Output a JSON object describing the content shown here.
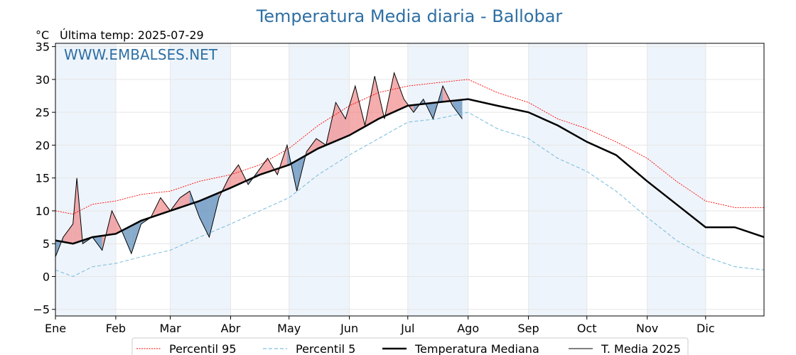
{
  "chart_data": {
    "type": "line",
    "title": "Temperatura Media diaria - Ballobar",
    "unit": "°C",
    "last_temp_label": "Última temp: 2025-07-29",
    "watermark": "WWW.EMBALSES.NET",
    "ylim": [
      -6,
      35.5
    ],
    "yticks": [
      -5,
      0,
      5,
      10,
      15,
      20,
      25,
      30,
      35
    ],
    "months": [
      "Ene",
      "Feb",
      "Mar",
      "Abr",
      "May",
      "Jun",
      "Jul",
      "Ago",
      "Sep",
      "Oct",
      "Nov",
      "Dic"
    ],
    "month_start_days": [
      1,
      32,
      60,
      91,
      121,
      152,
      182,
      213,
      244,
      274,
      305,
      335
    ],
    "days_in_year": 365,
    "grid": true,
    "legend_position": "bottom",
    "colors": {
      "p95": "#ff0000",
      "p5": "#7fbfdf",
      "median": "#000000",
      "current": "#000000",
      "above_fill": "#f08080",
      "below_fill": "#4a7fb0",
      "band_shade": "#eef4fb"
    },
    "series": [
      {
        "name": "Percentil 95",
        "x": [
          1,
          10,
          20,
          32,
          45,
          60,
          75,
          91,
          106,
          121,
          136,
          152,
          167,
          182,
          197,
          213,
          228,
          244,
          259,
          274,
          289,
          305,
          320,
          335,
          350,
          365
        ],
        "values": [
          10,
          9.5,
          11,
          11.5,
          12.5,
          13,
          14.5,
          15.5,
          17,
          19.5,
          23,
          26,
          28,
          29,
          29.5,
          30,
          28,
          26.5,
          24,
          22.5,
          20.5,
          18,
          14.5,
          11.5,
          10.5,
          10.5
        ]
      },
      {
        "name": "Percentil 5",
        "x": [
          1,
          10,
          20,
          32,
          45,
          60,
          75,
          91,
          106,
          121,
          136,
          152,
          167,
          182,
          197,
          213,
          228,
          244,
          259,
          274,
          289,
          305,
          320,
          335,
          350,
          365
        ],
        "values": [
          1,
          0,
          1.5,
          2,
          3,
          4,
          6,
          8,
          10,
          12,
          15.5,
          18.5,
          21,
          23.5,
          24,
          25,
          22.5,
          21,
          18,
          16,
          13,
          9,
          5.5,
          3,
          1.5,
          1
        ]
      },
      {
        "name": "Temperatura Mediana",
        "x": [
          1,
          10,
          20,
          32,
          45,
          60,
          75,
          91,
          106,
          121,
          136,
          152,
          167,
          182,
          197,
          213,
          228,
          244,
          259,
          274,
          289,
          305,
          320,
          335,
          350,
          365
        ],
        "values": [
          5.5,
          5,
          6,
          6.5,
          8.5,
          10,
          11.5,
          13.5,
          15.5,
          17,
          19.5,
          21.5,
          24,
          26,
          26.5,
          27,
          26,
          25,
          23,
          20.5,
          18.5,
          14.5,
          11,
          7.5,
          7.5,
          6
        ]
      },
      {
        "name": "T. Media 2025",
        "x": [
          1,
          5,
          10,
          12,
          15,
          20,
          25,
          30,
          35,
          40,
          45,
          50,
          55,
          60,
          65,
          70,
          75,
          80,
          85,
          90,
          95,
          100,
          105,
          110,
          115,
          120,
          125,
          130,
          135,
          140,
          145,
          150,
          155,
          160,
          165,
          170,
          175,
          180,
          185,
          190,
          195,
          200,
          205,
          210
        ],
        "values": [
          3,
          6,
          8,
          15,
          5,
          6,
          4,
          10,
          7,
          3.5,
          8,
          9,
          12,
          10,
          12,
          13,
          9,
          6,
          12,
          15,
          17,
          14,
          16,
          18,
          15.5,
          20,
          13,
          19,
          21,
          20,
          26.5,
          24,
          29,
          23,
          30.5,
          24,
          31,
          27,
          25,
          27,
          24,
          29,
          26,
          24
        ]
      }
    ]
  }
}
